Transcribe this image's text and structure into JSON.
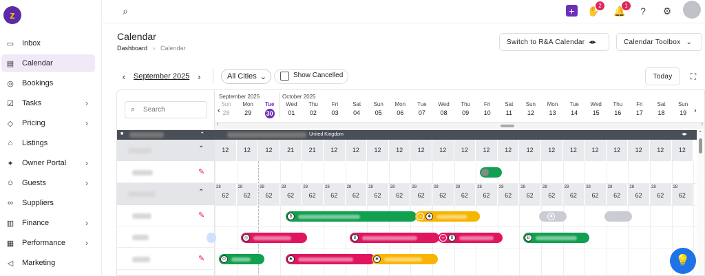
{
  "sidebar": {
    "items": [
      {
        "label": "Inbox",
        "icon": "inbox-icon",
        "glyph": "▭",
        "chev": ""
      },
      {
        "label": "Calendar",
        "icon": "calendar-icon",
        "glyph": "▤",
        "chev": ""
      },
      {
        "label": "Bookings",
        "icon": "bookings-icon",
        "glyph": "◎",
        "chev": ""
      },
      {
        "label": "Tasks",
        "icon": "tasks-icon",
        "glyph": "☑",
        "chev": "›"
      },
      {
        "label": "Pricing",
        "icon": "pricing-icon",
        "glyph": "◇",
        "chev": "›"
      },
      {
        "label": "Listings",
        "icon": "listings-icon",
        "glyph": "⌂",
        "chev": ""
      },
      {
        "label": "Owner Portal",
        "icon": "owner-portal-icon",
        "glyph": "✦",
        "chev": "›"
      },
      {
        "label": "Guests",
        "icon": "guests-icon",
        "glyph": "☺",
        "chev": "›"
      },
      {
        "label": "Suppliers",
        "icon": "suppliers-icon",
        "glyph": "∞",
        "chev": ""
      },
      {
        "label": "Finance",
        "icon": "finance-icon",
        "glyph": "▥",
        "chev": "›"
      },
      {
        "label": "Performance",
        "icon": "performance-icon",
        "glyph": "▦",
        "chev": "›"
      },
      {
        "label": "Marketing",
        "icon": "marketing-icon",
        "glyph": "◁",
        "chev": ""
      }
    ]
  },
  "topbar": {
    "badge_requests": "2",
    "badge_notifications": "1"
  },
  "page": {
    "title": "Calendar",
    "crumb_root": "Dashboard",
    "crumb_current": "Calendar"
  },
  "buttons": {
    "switch": "Switch to R&A Calendar",
    "toolbox": "Calendar Toolbox",
    "today": "Today"
  },
  "filters": {
    "month": "September 2025",
    "cities": "All Cities",
    "show_cancelled": "Show Cancelled",
    "search_placeholder": "Search"
  },
  "months": {
    "m1": "September 2025",
    "m2": "October 2025"
  },
  "days": [
    {
      "d": "Sun",
      "n": "28",
      "s": "muted"
    },
    {
      "d": "Mon",
      "n": "29",
      "s": ""
    },
    {
      "d": "Tue",
      "n": "30",
      "s": "today"
    },
    {
      "d": "Wed",
      "n": "01",
      "s": ""
    },
    {
      "d": "Thu",
      "n": "02",
      "s": ""
    },
    {
      "d": "Fri",
      "n": "03",
      "s": ""
    },
    {
      "d": "Sat",
      "n": "04",
      "s": ""
    },
    {
      "d": "Sun",
      "n": "05",
      "s": ""
    },
    {
      "d": "Mon",
      "n": "06",
      "s": ""
    },
    {
      "d": "Tue",
      "n": "07",
      "s": ""
    },
    {
      "d": "Wed",
      "n": "08",
      "s": ""
    },
    {
      "d": "Thu",
      "n": "09",
      "s": ""
    },
    {
      "d": "Fri",
      "n": "10",
      "s": ""
    },
    {
      "d": "Sat",
      "n": "11",
      "s": ""
    },
    {
      "d": "Sun",
      "n": "12",
      "s": ""
    },
    {
      "d": "Mon",
      "n": "13",
      "s": ""
    },
    {
      "d": "Tue",
      "n": "14",
      "s": ""
    },
    {
      "d": "Wed",
      "n": "15",
      "s": ""
    },
    {
      "d": "Thu",
      "n": "16",
      "s": ""
    },
    {
      "d": "Fri",
      "n": "17",
      "s": ""
    },
    {
      "d": "Sat",
      "n": "18",
      "s": ""
    },
    {
      "d": "Sun",
      "n": "19",
      "s": ""
    }
  ],
  "country": "United Kingdom",
  "row1_values": [
    "12",
    "12",
    "12",
    "21",
    "21",
    "12",
    "12",
    "12",
    "12",
    "12",
    "12",
    "12",
    "12",
    "12",
    "12",
    "12",
    "12",
    "12",
    "12",
    "12",
    "12",
    "12"
  ],
  "row2_small": [
    "28",
    "28",
    "28",
    "28",
    "28",
    "28",
    "28",
    "28",
    "28",
    "28",
    "28",
    "28",
    "28",
    "28",
    "28",
    "28",
    "28",
    "28",
    "28",
    "28",
    "28",
    "28"
  ],
  "row2_values": [
    "62",
    "62",
    "62",
    "62",
    "62",
    "62",
    "62",
    "62",
    "62",
    "62",
    "62",
    "62",
    "62",
    "62",
    "62",
    "62",
    "62",
    "62",
    "62",
    "62",
    "62",
    "62"
  ],
  "colors": {
    "green": "#11a050",
    "pink": "#e0155f",
    "orange": "#f7b500",
    "purple": "#6b2fb8",
    "blue": "#1e73e8",
    "gray": "#c9ccd2"
  }
}
